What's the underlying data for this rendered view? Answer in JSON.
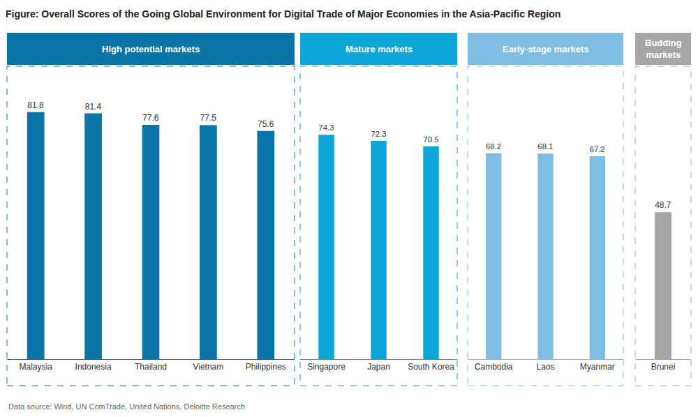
{
  "chart_data": {
    "type": "bar",
    "title": "Figure: Overall Scores of the Going Global Environment for Digital Trade of Major Economies in the Asia-Pacific Region",
    "ylim": [
      0,
      97
    ],
    "yticks": [],
    "tick_labels": "x",
    "data_labels": true,
    "grid": false,
    "series": [
      {
        "name": "High potential markets",
        "color": "#0a76a8",
        "categories": [
          "Malaysia",
          "Indonesia",
          "Thailand",
          "Vietnam",
          "Philippines"
        ],
        "values": [
          81.8,
          81.4,
          77.6,
          77.5,
          75.6
        ]
      },
      {
        "name": "Mature markets",
        "color": "#0ea5d8",
        "categories": [
          "Singapore",
          "Japan",
          "South Korea"
        ],
        "values": [
          74.3,
          72.3,
          70.5
        ]
      },
      {
        "name": "Early-stage markets",
        "color": "#7fbde3",
        "categories": [
          "Cambodia",
          "Laos",
          "Myanmar"
        ],
        "values": [
          68.2,
          68.1,
          67.2
        ]
      },
      {
        "name": "Budding markets",
        "color": "#a6a6a6",
        "categories": [
          "Brunei"
        ],
        "values": [
          48.7
        ]
      }
    ],
    "source": "Data source: Wind, UN ComTrade, United Nations, Deloitte Research"
  }
}
